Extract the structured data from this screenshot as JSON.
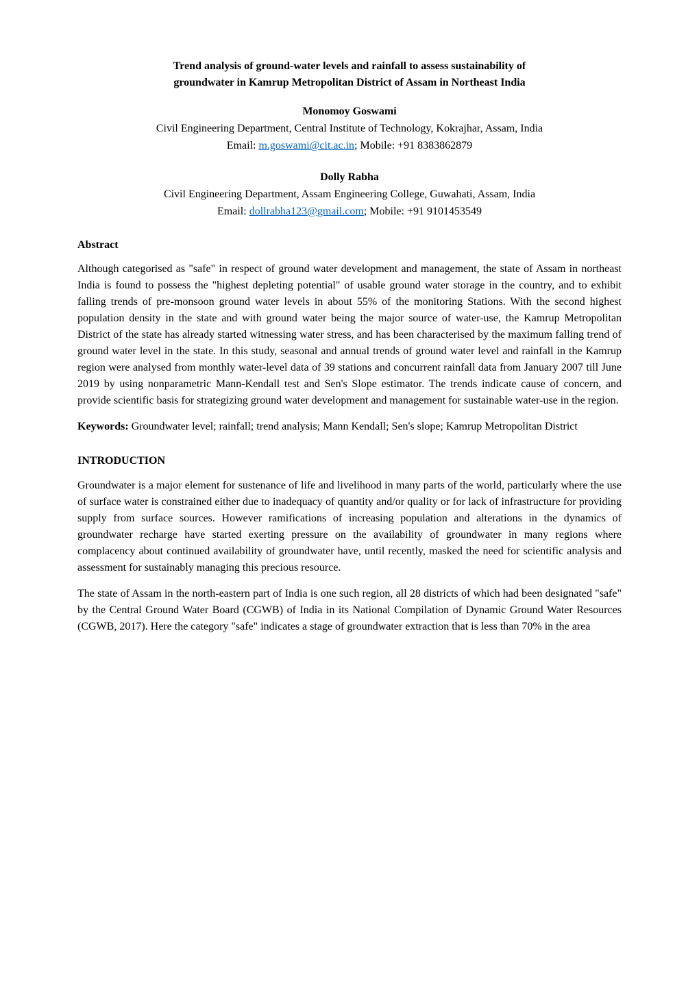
{
  "title": {
    "line1": "Trend analysis of ground-water levels and rainfall to assess sustainability of",
    "line2": "groundwater in Kamrup Metropolitan District of Assam in Northeast India"
  },
  "authors": [
    {
      "name": "Monomoy Goswami",
      "affiliation": "Civil Engineering Department, Central Institute of Technology, Kokrajhar, Assam, India",
      "email_label": "Email: ",
      "email": "m.goswami@cit.ac.in",
      "mobile_label": "; Mobile: ",
      "mobile": "+91 8383862879"
    },
    {
      "name": "Dolly Rabha",
      "affiliation": "Civil Engineering Department, Assam Engineering College, Guwahati, Assam, India",
      "email_label": "Email: ",
      "email": "dollrabha123@gmail.com",
      "mobile_label": "; Mobile: ",
      "mobile": "+91 9101453549"
    }
  ],
  "abstract": {
    "heading": "Abstract",
    "text": "Although categorised as \"safe\" in respect of ground water development and management, the state of Assam in northeast India is found to possess the \"highest depleting potential\" of usable ground water storage in the country, and to exhibit falling trends of pre-monsoon ground water levels in about 55% of the monitoring Stations.  With the second highest population density in the state and with ground water being the major source of water-use, the Kamrup Metropolitan District of the state has already started witnessing water stress, and has been characterised by the maximum falling trend of ground water level in the state.  In this study, seasonal and annual trends of ground water level and rainfall in the Kamrup region were analysed from monthly water-level data of 39 stations and concurrent rainfall data from January 2007 till June 2019 by using nonparametric Mann-Kendall test and Sen's Slope estimator.  The trends indicate cause of concern, and provide scientific basis for strategizing ground water development and management for sustainable water-use in the region."
  },
  "keywords": {
    "label": "Keywords: ",
    "text": "Groundwater level; rainfall; trend analysis; Mann Kendall; Sen's slope; Kamrup Metropolitan District"
  },
  "introduction": {
    "heading": "INTRODUCTION",
    "para1": "Groundwater is a major element for sustenance of life and livelihood in many parts of the world, particularly where the use of surface water is constrained either due to inadequacy of quantity and/or quality or for lack of infrastructure for providing supply from surface sources.  However ramifications of increasing population and alterations in the dynamics of groundwater recharge have started exerting pressure on the availability of groundwater in many regions where complacency about continued availability of groundwater have, until recently, masked the need for scientific analysis and assessment for sustainably managing this precious resource.",
    "para2": "The state of Assam in the north-eastern part of India is one such region, all 28 districts of which had been designated \"safe\" by the Central Ground Water Board (CGWB) of India in its National Compilation of Dynamic Ground Water Resources (CGWB, 2017).  Here the category \"safe\" indicates a stage of groundwater extraction that is less than 70% in the area"
  },
  "colors": {
    "link_color": "#0563c1",
    "text_color": "#000000",
    "background_color": "#ffffff"
  },
  "typography": {
    "font_family": "Times New Roman",
    "base_fontsize_pt": 12,
    "heading_weight": "bold",
    "body_weight": "normal"
  }
}
